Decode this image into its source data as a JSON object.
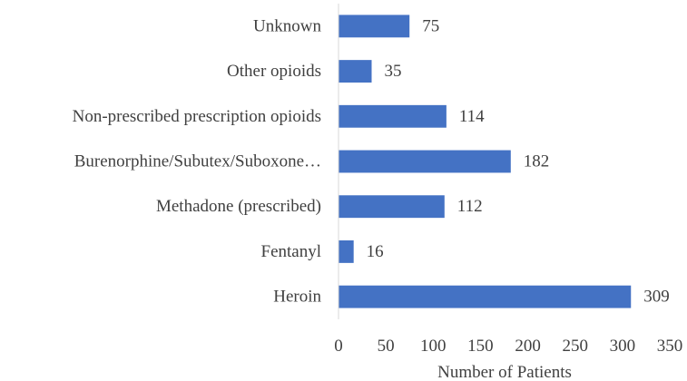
{
  "chart_data": {
    "type": "bar",
    "orientation": "horizontal",
    "categories": [
      "Unknown",
      "Other opioids",
      "Non-prescribed prescription opioids",
      "Burenorphine/Subutex/Suboxone…",
      "Methadone (prescribed)",
      "Fentanyl",
      "Heroin"
    ],
    "values": [
      75,
      35,
      114,
      182,
      112,
      16,
      309
    ],
    "data_labels": [
      "75",
      "35",
      "114",
      "182",
      "112",
      "16",
      "309"
    ],
    "xlabel": "Number of Patients",
    "ylabel": "",
    "xlim": [
      0,
      350
    ],
    "xticks": [
      0,
      50,
      100,
      150,
      200,
      250,
      300,
      350
    ],
    "grid": false,
    "legend": "none",
    "bar_color": "#4472c4"
  }
}
